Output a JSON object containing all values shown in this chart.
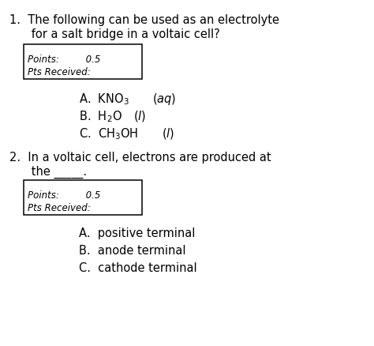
{
  "background_color": "#ffffff",
  "q1_line1": "1.  The following can be used as an electrolyte",
  "q1_line2": "      for a salt bridge in a voltaic cell?",
  "box1_points": "Points:         0.5",
  "box1_pts_received": "Pts Received:",
  "q2_line1": "2.  In a voltaic cell, electrons are produced at",
  "q2_line2": "      the _____.",
  "box2_points": "Points:         0.5",
  "box2_pts_received": "Pts Received:",
  "font_size_question": 10.5,
  "font_size_options": 10.5,
  "font_size_box": 8.5,
  "font_size_sub": 7.5
}
